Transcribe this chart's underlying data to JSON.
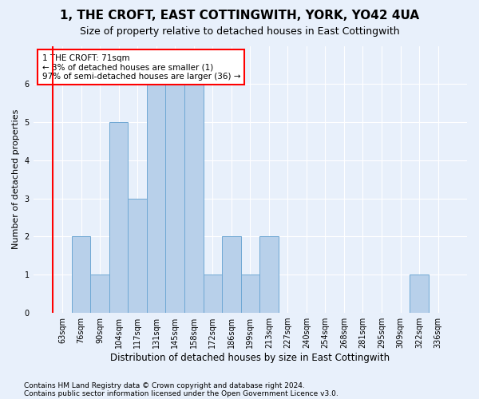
{
  "title1": "1, THE CROFT, EAST COTTINGWITH, YORK, YO42 4UA",
  "title2": "Size of property relative to detached houses in East Cottingwith",
  "xlabel": "Distribution of detached houses by size in East Cottingwith",
  "ylabel": "Number of detached properties",
  "categories": [
    "63sqm",
    "76sqm",
    "90sqm",
    "104sqm",
    "117sqm",
    "131sqm",
    "145sqm",
    "158sqm",
    "172sqm",
    "186sqm",
    "199sqm",
    "213sqm",
    "227sqm",
    "240sqm",
    "254sqm",
    "268sqm",
    "281sqm",
    "295sqm",
    "309sqm",
    "322sqm",
    "336sqm"
  ],
  "values": [
    0,
    2,
    1,
    5,
    3,
    6,
    6,
    6,
    1,
    2,
    1,
    2,
    0,
    0,
    0,
    0,
    0,
    0,
    0,
    1,
    0
  ],
  "bar_color": "#b8d0ea",
  "bar_edge_color": "#6fa8d4",
  "annotation_box_text": "1 THE CROFT: 71sqm\n← 3% of detached houses are smaller (1)\n97% of semi-detached houses are larger (36) →",
  "annotation_box_color": "white",
  "annotation_box_edge_color": "red",
  "marker_color": "red",
  "ylim": [
    0,
    7
  ],
  "yticks": [
    0,
    1,
    2,
    3,
    4,
    5,
    6,
    7
  ],
  "footnote1": "Contains HM Land Registry data © Crown copyright and database right 2024.",
  "footnote2": "Contains public sector information licensed under the Open Government Licence v3.0.",
  "bg_color": "#e8f0fb",
  "plot_bg_color": "#e8f0fb",
  "grid_color": "white",
  "title1_fontsize": 11,
  "title2_fontsize": 9,
  "xlabel_fontsize": 8.5,
  "ylabel_fontsize": 8,
  "tick_fontsize": 7,
  "footnote_fontsize": 6.5
}
